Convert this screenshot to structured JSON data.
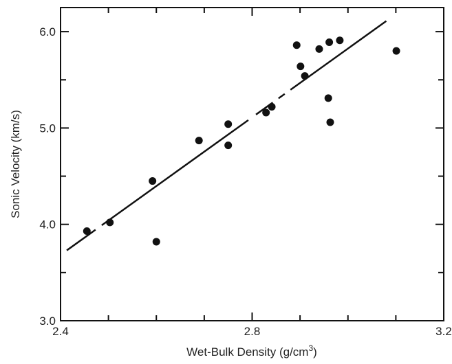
{
  "chart_data": {
    "type": "scatter",
    "title": "",
    "xlabel": "Wet-Bulk Density (g/cm",
    "xlabel_superscript": "3",
    "xlabel_suffix": ")",
    "ylabel": "Sonic Velocity (km/s)",
    "xlim": [
      2.4,
      3.2
    ],
    "ylim": [
      3.0,
      6.25
    ],
    "xticks_major": [
      2.4,
      2.8,
      3.2
    ],
    "xtick_labels": [
      "2.4",
      "2.8",
      "3.2"
    ],
    "xticks_minor": [
      2.5,
      2.6,
      2.7,
      2.9,
      3.0,
      3.1
    ],
    "yticks_major": [
      3.0,
      4.0,
      5.0,
      6.0
    ],
    "ytick_labels": [
      "3.0",
      "4.0",
      "5.0",
      "6.0"
    ],
    "yticks_minor": [
      3.5,
      4.5,
      5.5
    ],
    "grid": false,
    "legend": "none",
    "marker_color": "#111111",
    "points": [
      {
        "x": 2.455,
        "y": 3.93
      },
      {
        "x": 2.503,
        "y": 4.02
      },
      {
        "x": 2.592,
        "y": 4.45
      },
      {
        "x": 2.6,
        "y": 3.82
      },
      {
        "x": 2.689,
        "y": 4.87
      },
      {
        "x": 2.75,
        "y": 5.04
      },
      {
        "x": 2.75,
        "y": 4.82
      },
      {
        "x": 2.829,
        "y": 5.16
      },
      {
        "x": 2.841,
        "y": 5.22
      },
      {
        "x": 2.893,
        "y": 5.86
      },
      {
        "x": 2.901,
        "y": 5.64
      },
      {
        "x": 2.91,
        "y": 5.54
      },
      {
        "x": 2.94,
        "y": 5.82
      },
      {
        "x": 2.961,
        "y": 5.89
      },
      {
        "x": 2.983,
        "y": 5.91
      },
      {
        "x": 2.959,
        "y": 5.31
      },
      {
        "x": 2.963,
        "y": 5.06
      },
      {
        "x": 3.101,
        "y": 5.8
      }
    ],
    "fit_line": {
      "x": [
        2.413,
        3.08
      ],
      "y": [
        3.73,
        6.11
      ],
      "gaps_x": [
        [
          2.473,
          2.486
        ],
        [
          2.792,
          2.808
        ],
        [
          2.843,
          2.855
        ],
        [
          2.868,
          2.88
        ]
      ]
    }
  }
}
